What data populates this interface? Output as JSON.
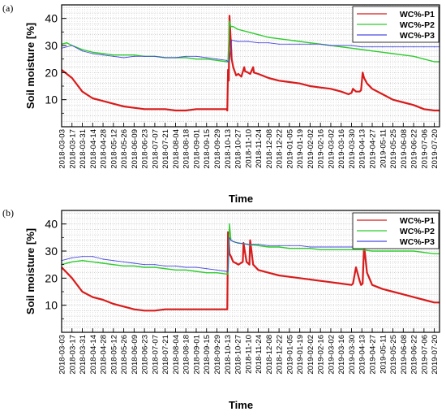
{
  "colors": {
    "WC%-P1": "#d81b1b",
    "WC%-P2": "#2ecc2e",
    "WC%-P3": "#4a4ae0"
  },
  "chart_data": [
    {
      "type": "line",
      "panel": "(a)",
      "xlabel": "Time",
      "ylabel": "Soil moisture [%]",
      "ylim": [
        0,
        45
      ],
      "yticks": [
        10,
        20,
        30,
        40
      ],
      "grid": true,
      "legend": "top-right",
      "x_range": [
        "2018-03-03",
        "2019-07-27"
      ],
      "x_ticks": [
        "2018-03-03",
        "2018-03-17",
        "2018-03-31",
        "2018-04-14",
        "2018-04-28",
        "2018-05-12",
        "2018-05-26",
        "2018-06-09",
        "2018-06-23",
        "2018-07-07",
        "2018-07-21",
        "2018-08-04",
        "2018-08-18",
        "2018-09-01",
        "2018-09-15",
        "2018-09-29",
        "2018-10-13",
        "2018-10-27",
        "2018-11-10",
        "2018-11-24",
        "2018-12-08",
        "2018-12-22",
        "2019-01-05",
        "2019-01-19",
        "2019-02-02",
        "2019-02-16",
        "2019-03-02",
        "2019-03-16",
        "2019-03-30",
        "2019-04-13",
        "2019-04-27",
        "2019-05-11",
        "2019-05-25",
        "2019-06-08",
        "2019-06-22",
        "2019-07-06",
        "2019-07-20"
      ],
      "series": [
        {
          "name": "WC%-P1",
          "x": [
            "2018-03-03",
            "2018-03-17",
            "2018-03-31",
            "2018-04-14",
            "2018-04-28",
            "2018-05-12",
            "2018-05-26",
            "2018-06-09",
            "2018-06-23",
            "2018-07-07",
            "2018-07-21",
            "2018-08-04",
            "2018-08-18",
            "2018-09-01",
            "2018-09-15",
            "2018-09-29",
            "2018-10-12",
            "2018-10-13",
            "2018-10-14",
            "2018-10-15",
            "2018-10-16",
            "2018-10-19",
            "2018-10-21",
            "2018-10-25",
            "2018-10-28",
            "2018-11-01",
            "2018-11-05",
            "2018-11-06",
            "2018-11-10",
            "2018-11-13",
            "2018-11-17",
            "2018-11-18",
            "2018-11-24",
            "2018-12-08",
            "2018-12-22",
            "2019-01-05",
            "2019-01-19",
            "2019-02-02",
            "2019-02-16",
            "2019-03-02",
            "2019-03-16",
            "2019-03-26",
            "2019-03-30",
            "2019-04-01",
            "2019-04-05",
            "2019-04-10",
            "2019-04-12",
            "2019-04-14",
            "2019-04-16",
            "2019-04-20",
            "2019-04-27",
            "2019-05-11",
            "2019-05-25",
            "2019-06-08",
            "2019-06-22",
            "2019-07-06",
            "2019-07-20",
            "2019-07-27"
          ],
          "y": [
            21,
            18,
            13,
            10.5,
            9.5,
            8.5,
            7.5,
            7,
            6.5,
            6.5,
            6.5,
            6,
            6,
            6.5,
            6.5,
            6.5,
            6.5,
            6,
            21,
            17,
            41,
            25,
            22,
            19,
            19.5,
            18.5,
            22,
            20.5,
            20,
            19.5,
            22,
            20,
            19.5,
            18,
            17,
            16.5,
            16,
            15,
            14.5,
            14,
            13,
            12,
            12.5,
            14,
            13,
            13,
            13.5,
            20,
            18,
            16,
            14,
            12,
            10,
            9,
            8,
            6.5,
            6,
            6
          ]
        },
        {
          "name": "WC%-P2",
          "x": [
            "2018-03-03",
            "2018-03-10",
            "2018-03-17",
            "2018-03-31",
            "2018-04-14",
            "2018-04-28",
            "2018-05-12",
            "2018-05-26",
            "2018-06-09",
            "2018-06-23",
            "2018-07-07",
            "2018-07-21",
            "2018-08-04",
            "2018-08-18",
            "2018-09-01",
            "2018-09-15",
            "2018-09-29",
            "2018-10-12",
            "2018-10-14",
            "2018-10-16",
            "2018-10-18",
            "2018-10-21",
            "2018-10-27",
            "2018-11-10",
            "2018-11-24",
            "2018-12-08",
            "2018-12-22",
            "2019-01-05",
            "2019-01-19",
            "2019-02-02",
            "2019-02-16",
            "2019-03-02",
            "2019-03-16",
            "2019-03-30",
            "2019-04-13",
            "2019-04-27",
            "2019-05-11",
            "2019-05-25",
            "2019-06-08",
            "2019-06-22",
            "2019-07-06",
            "2019-07-20",
            "2019-07-27"
          ],
          "y": [
            30.5,
            31,
            30,
            28.5,
            27.5,
            27,
            26.5,
            26.5,
            26.5,
            26,
            26,
            25.5,
            25.5,
            25.5,
            25,
            25,
            24.5,
            24,
            24,
            39,
            37,
            37,
            36,
            35,
            34,
            33,
            32.5,
            32,
            31.5,
            31,
            30.5,
            30,
            29.5,
            29,
            28.5,
            28,
            27.5,
            27,
            26.5,
            26,
            25,
            24,
            24
          ]
        },
        {
          "name": "WC%-P3",
          "x": [
            "2018-03-03",
            "2018-03-17",
            "2018-03-31",
            "2018-04-14",
            "2018-04-28",
            "2018-05-12",
            "2018-05-26",
            "2018-06-09",
            "2018-06-23",
            "2018-07-07",
            "2018-07-21",
            "2018-08-04",
            "2018-08-18",
            "2018-09-01",
            "2018-09-15",
            "2018-09-29",
            "2018-10-12",
            "2018-10-14",
            "2018-10-16",
            "2018-10-19",
            "2018-10-27",
            "2018-11-10",
            "2018-11-24",
            "2018-12-08",
            "2018-12-22",
            "2019-01-05",
            "2019-01-19",
            "2019-02-02",
            "2019-02-16",
            "2019-03-02",
            "2019-03-16",
            "2019-03-30",
            "2019-04-13",
            "2019-04-27",
            "2019-05-11",
            "2019-05-25",
            "2019-06-08",
            "2019-06-22",
            "2019-07-06",
            "2019-07-20",
            "2019-07-27"
          ],
          "y": [
            29,
            30,
            28,
            27,
            26.5,
            26,
            25.5,
            26,
            26,
            26,
            25.5,
            25.5,
            26,
            26,
            25.5,
            25,
            24.5,
            24,
            24,
            32,
            31.5,
            31.5,
            31,
            31,
            30.5,
            30.5,
            30.5,
            30.5,
            30.5,
            30,
            30,
            30,
            29.5,
            29.5,
            29.5,
            29.5,
            29.5,
            29.5,
            29.5,
            29.5,
            29.5
          ]
        }
      ]
    },
    {
      "type": "line",
      "panel": "(b)",
      "xlabel": "Time",
      "ylabel": "Soil moisture [%]",
      "ylim": [
        0,
        45
      ],
      "yticks": [
        10,
        20,
        30,
        40
      ],
      "grid": true,
      "legend": "top-right",
      "x_range": [
        "2018-03-03",
        "2019-07-27"
      ],
      "x_ticks": [
        "2018-03-03",
        "2018-03-17",
        "2018-03-31",
        "2018-04-14",
        "2018-04-28",
        "2018-05-12",
        "2018-05-26",
        "2018-06-09",
        "2018-06-23",
        "2018-07-07",
        "2018-07-21",
        "2018-08-04",
        "2018-08-18",
        "2018-09-01",
        "2018-09-15",
        "2018-09-29",
        "2018-10-13",
        "2018-10-27",
        "2018-11-10",
        "2018-11-24",
        "2018-12-08",
        "2018-12-22",
        "2019-01-05",
        "2019-01-19",
        "2019-02-02",
        "2019-02-16",
        "2019-03-02",
        "2019-03-16",
        "2019-03-30",
        "2019-04-13",
        "2019-04-27",
        "2019-05-11",
        "2019-05-25",
        "2019-06-08",
        "2019-06-22",
        "2019-07-06",
        "2019-07-20"
      ],
      "series": [
        {
          "name": "WC%-P1",
          "x": [
            "2018-03-03",
            "2018-03-17",
            "2018-03-31",
            "2018-04-14",
            "2018-04-28",
            "2018-05-12",
            "2018-05-26",
            "2018-06-09",
            "2018-06-23",
            "2018-07-07",
            "2018-07-21",
            "2018-08-04",
            "2018-08-18",
            "2018-09-01",
            "2018-09-15",
            "2018-09-29",
            "2018-10-12",
            "2018-10-13",
            "2018-10-14",
            "2018-10-16",
            "2018-10-18",
            "2018-10-21",
            "2018-10-25",
            "2018-10-28",
            "2018-11-03",
            "2018-11-04",
            "2018-11-08",
            "2018-11-12",
            "2018-11-13",
            "2018-11-17",
            "2018-11-24",
            "2018-12-08",
            "2018-12-22",
            "2019-01-05",
            "2019-01-19",
            "2019-02-02",
            "2019-02-16",
            "2019-03-02",
            "2019-03-16",
            "2019-03-30",
            "2019-04-01",
            "2019-04-05",
            "2019-04-10",
            "2019-04-12",
            "2019-04-14",
            "2019-04-16",
            "2019-04-20",
            "2019-04-27",
            "2019-05-11",
            "2019-05-25",
            "2019-06-08",
            "2019-06-22",
            "2019-07-06",
            "2019-07-20",
            "2019-07-27"
          ],
          "y": [
            24,
            20,
            15,
            13,
            12,
            10.5,
            9.5,
            8.5,
            8,
            8,
            8.5,
            8.5,
            8.5,
            8.5,
            8.5,
            8.5,
            8.5,
            8.5,
            37,
            29,
            28,
            26,
            25.5,
            25,
            26,
            33,
            26,
            25,
            34,
            25,
            23,
            22,
            21,
            20.5,
            20,
            19.5,
            19,
            18.5,
            18,
            17.5,
            18,
            24,
            19,
            17.5,
            18,
            32,
            22,
            17.5,
            16,
            15,
            14,
            13,
            12,
            11,
            11
          ]
        },
        {
          "name": "WC%-P2",
          "x": [
            "2018-03-03",
            "2018-03-17",
            "2018-03-31",
            "2018-04-14",
            "2018-04-28",
            "2018-05-12",
            "2018-05-26",
            "2018-06-09",
            "2018-06-23",
            "2018-07-07",
            "2018-07-21",
            "2018-08-04",
            "2018-08-18",
            "2018-09-01",
            "2018-09-15",
            "2018-09-29",
            "2018-10-12",
            "2018-10-14",
            "2018-10-16",
            "2018-10-18",
            "2018-10-21",
            "2018-10-27",
            "2018-11-10",
            "2018-11-24",
            "2018-12-08",
            "2018-12-22",
            "2019-01-05",
            "2019-01-19",
            "2019-02-02",
            "2019-02-16",
            "2019-03-02",
            "2019-03-16",
            "2019-03-30",
            "2019-04-13",
            "2019-04-27",
            "2019-05-11",
            "2019-05-25",
            "2019-06-08",
            "2019-06-22",
            "2019-07-06",
            "2019-07-20",
            "2019-07-27"
          ],
          "y": [
            25,
            26,
            26.5,
            26,
            25.5,
            25,
            24.5,
            24.5,
            24,
            24,
            23.5,
            23,
            23,
            22.5,
            22,
            22,
            21.5,
            21.5,
            40,
            34,
            33.5,
            33,
            32.5,
            32,
            31.5,
            31.5,
            31,
            31,
            31,
            30.5,
            30.5,
            30.5,
            30.5,
            30.5,
            30,
            30,
            30,
            30,
            30,
            29.5,
            29,
            29
          ]
        },
        {
          "name": "WC%-P3",
          "x": [
            "2018-03-03",
            "2018-03-17",
            "2018-03-31",
            "2018-04-14",
            "2018-04-28",
            "2018-05-12",
            "2018-05-26",
            "2018-06-09",
            "2018-06-23",
            "2018-07-07",
            "2018-07-21",
            "2018-08-04",
            "2018-08-18",
            "2018-09-01",
            "2018-09-15",
            "2018-09-29",
            "2018-10-12",
            "2018-10-14",
            "2018-10-16",
            "2018-10-18",
            "2018-10-21",
            "2018-10-27",
            "2018-11-10",
            "2018-11-24",
            "2018-12-08",
            "2018-12-22",
            "2019-01-05",
            "2019-01-19",
            "2019-02-02",
            "2019-02-16",
            "2019-03-02",
            "2019-03-16",
            "2019-03-30",
            "2019-04-13",
            "2019-04-27",
            "2019-05-11",
            "2019-05-25",
            "2019-06-08",
            "2019-06-22",
            "2019-07-06",
            "2019-07-20",
            "2019-07-27"
          ],
          "y": [
            26.5,
            27.5,
            28,
            28,
            27,
            26.5,
            26,
            25.5,
            25,
            25,
            24.5,
            24.5,
            24,
            24,
            23.5,
            23,
            22.5,
            22.5,
            35,
            34,
            33.5,
            33,
            32.5,
            32.5,
            32,
            32,
            32,
            32,
            31.5,
            31.5,
            31.5,
            31.5,
            31.5,
            31.5,
            31.5,
            31.5,
            31.5,
            31.5,
            31.5,
            31.5,
            31.5,
            31.5
          ]
        }
      ]
    }
  ]
}
